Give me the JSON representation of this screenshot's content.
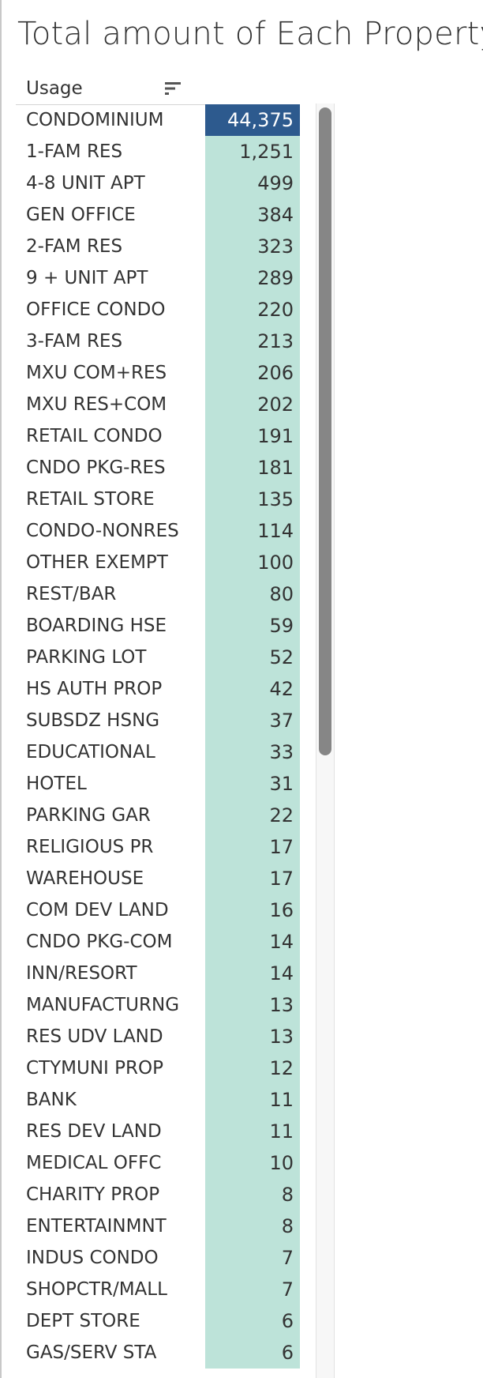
{
  "title": "Total amount of Each Property",
  "column_header": "Usage",
  "icons": {
    "sort": "sort-descending-icon"
  },
  "colors": {
    "highlight_fill": "#2d5a8e",
    "highlight_text": "#ffffff",
    "cell_fill": "#bde3d9",
    "cell_text": "#333333"
  },
  "chart_data": {
    "type": "table",
    "title": "Total amount of Each Property",
    "columns": [
      "Usage",
      ""
    ],
    "categories": [
      "CONDOMINIUM",
      "1-FAM RES",
      "4-8 UNIT APT",
      "GEN OFFICE",
      "2-FAM RES",
      "9 + UNIT APT",
      "OFFICE CONDO",
      "3-FAM RES",
      "MXU COM+RES",
      "MXU RES+COM",
      "RETAIL CONDO",
      "CNDO PKG-RES",
      "RETAIL STORE",
      "CONDO-NONRES",
      "OTHER EXEMPT",
      "REST/BAR",
      "BOARDING HSE",
      "PARKING LOT",
      "HS AUTH PROP",
      "SUBSDZ HSNG",
      "EDUCATIONAL",
      "HOTEL",
      "PARKING GAR",
      "RELIGIOUS PR",
      "WAREHOUSE",
      "COM DEV LAND",
      "CNDO PKG-COM",
      "INN/RESORT",
      "MANUFACTURNG",
      "RES UDV LAND",
      "CTYMUNI PROP",
      "BANK",
      "RES DEV LAND",
      "MEDICAL OFFC",
      "CHARITY PROP",
      "ENTERTAINMNT",
      "INDUS CONDO",
      "SHOPCTR/MALL",
      "DEPT STORE",
      "GAS/SERV STA"
    ],
    "values": [
      44375,
      1251,
      499,
      384,
      323,
      289,
      220,
      213,
      206,
      202,
      191,
      181,
      135,
      114,
      100,
      80,
      59,
      52,
      42,
      37,
      33,
      31,
      22,
      17,
      17,
      16,
      14,
      14,
      13,
      13,
      12,
      11,
      11,
      10,
      8,
      8,
      7,
      7,
      6,
      6
    ],
    "highlighted_row": 0
  }
}
